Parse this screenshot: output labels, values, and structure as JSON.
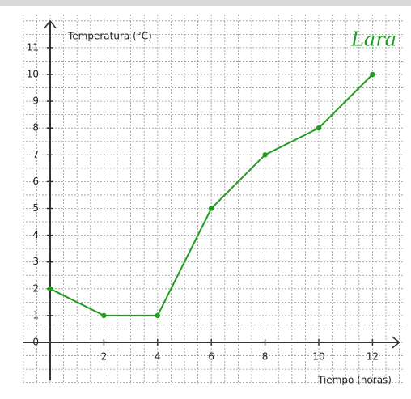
{
  "chart_data": {
    "type": "line",
    "y_label": "Temperatura (°C)",
    "x_label": "Tiempo (horas)",
    "annotation": "Lara",
    "x": [
      0,
      2,
      4,
      6,
      8,
      10,
      12
    ],
    "series": [
      {
        "name": "Temperatura",
        "color": "#1f9e1f",
        "values": [
          2,
          1,
          1,
          5,
          7,
          8,
          10
        ]
      }
    ],
    "xlim": [
      0,
      13
    ],
    "ylim": [
      0,
      12
    ],
    "xticks": [
      2,
      4,
      6,
      8,
      10,
      12
    ],
    "yticks": [
      0,
      1,
      2,
      3,
      4,
      5,
      6,
      7,
      8,
      9,
      10,
      11
    ],
    "grid": true
  }
}
